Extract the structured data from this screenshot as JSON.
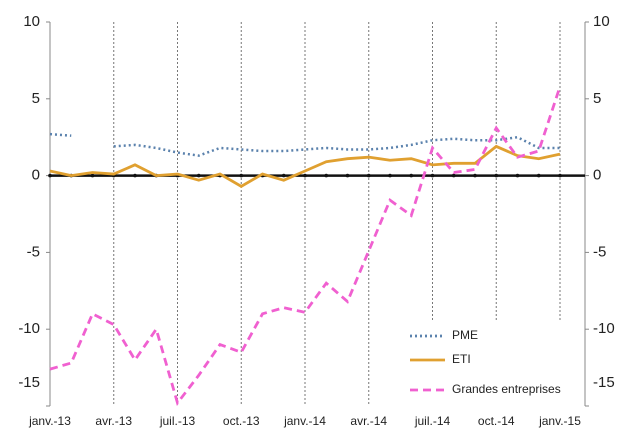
{
  "chart_data": {
    "type": "line",
    "categories": [
      "janv.-13",
      null,
      null,
      "avr.-13",
      null,
      null,
      "juil.-13",
      null,
      null,
      "oct.-13",
      null,
      null,
      "janv.-14",
      null,
      null,
      "avr.-14",
      null,
      null,
      "juil.-14",
      null,
      null,
      "oct.-14",
      null,
      null,
      "janv.-15"
    ],
    "series": [
      {
        "name": "PME",
        "color": "#5b82ad",
        "values": [
          2.7,
          2.6,
          null,
          1.9,
          2.0,
          1.8,
          1.5,
          1.3,
          1.8,
          1.7,
          1.6,
          1.6,
          1.7,
          1.8,
          1.7,
          1.7,
          1.8,
          2.0,
          2.3,
          2.4,
          2.3,
          2.3,
          2.5,
          1.8,
          1.8
        ]
      },
      {
        "name": "ETI",
        "color": "#e0a030",
        "values": [
          0.3,
          0.0,
          0.2,
          0.1,
          0.7,
          0.0,
          0.1,
          -0.3,
          0.1,
          -0.7,
          0.1,
          -0.3,
          0.3,
          0.9,
          1.1,
          1.2,
          1.0,
          1.1,
          0.7,
          0.8,
          0.8,
          1.9,
          1.3,
          1.1,
          1.4
        ]
      },
      {
        "name": "Grandes entreprises",
        "color": "#f060d0",
        "values": [
          -12.6,
          -12.2,
          -9.0,
          -9.7,
          -12.0,
          -10.0,
          -14.8,
          -13.0,
          -11.0,
          -11.5,
          -9.0,
          -8.6,
          -8.9,
          -7.0,
          -8.2,
          -4.9,
          -1.6,
          -2.6,
          1.8,
          0.2,
          0.4,
          3.1,
          1.2,
          1.6,
          5.8
        ]
      }
    ],
    "ylim": [
      -15,
      10
    ],
    "yticks": [
      -15,
      -10,
      -5,
      0,
      5,
      10
    ],
    "y2lim": [
      -15,
      10
    ],
    "y2ticks": [
      -15,
      -10,
      -5,
      0,
      5,
      10
    ],
    "legend": "lower right"
  }
}
